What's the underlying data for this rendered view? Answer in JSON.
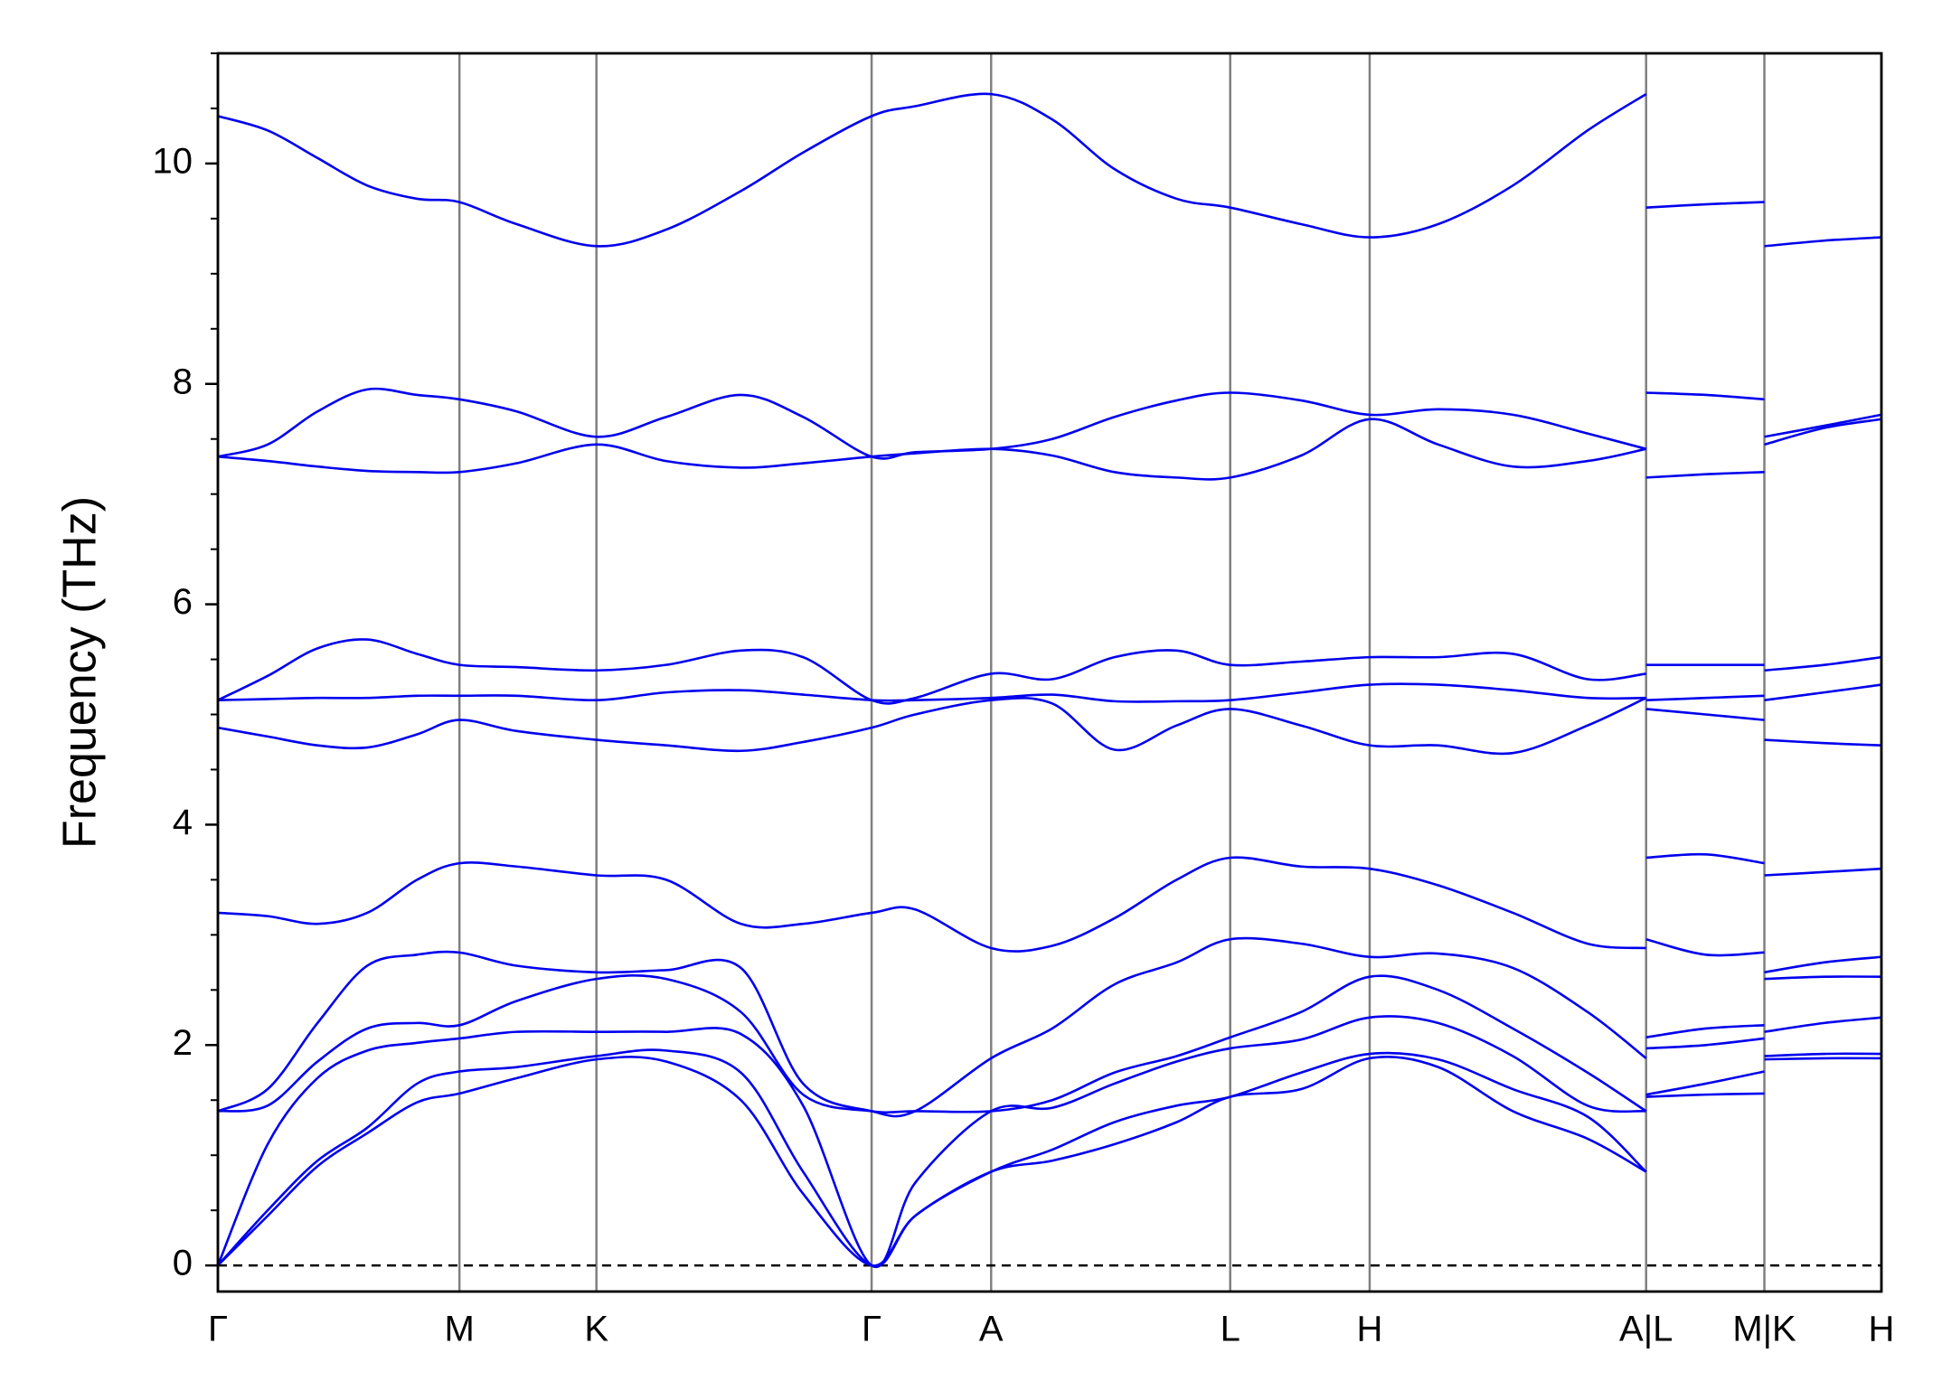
{
  "chart_data": {
    "type": "line",
    "y_label": "Frequency (THz)",
    "color": "#0000ee",
    "xlim": [
      0,
      1.336
    ],
    "ylim": [
      -0.237,
      11.0
    ],
    "yticks": [
      0,
      2,
      4,
      6,
      8,
      10
    ],
    "xticks": [
      {
        "value": 0,
        "label": "Γ"
      },
      {
        "value": 0.194,
        "label": "M"
      },
      {
        "value": 0.304,
        "label": "K"
      },
      {
        "value": 0.525,
        "label": "Γ"
      },
      {
        "value": 0.621,
        "label": "A"
      },
      {
        "value": 0.813,
        "label": "L"
      },
      {
        "value": 0.925,
        "label": "H"
      },
      {
        "value": 1.147,
        "label": "A|L"
      },
      {
        "value": 1.242,
        "label": "M|K"
      },
      {
        "value": 1.336,
        "label": "H"
      }
    ],
    "hlines": [
      0
    ],
    "x": [
      0,
      0.04,
      0.08,
      0.12,
      0.16,
      0.194,
      0.24,
      0.304,
      0.36,
      0.42,
      0.47,
      0.525,
      0.56,
      0.621,
      0.67,
      0.72,
      0.77,
      0.813,
      0.87,
      0.925,
      0.98,
      1.04,
      1.1,
      1.147,
      1.147,
      1.147,
      1.195,
      1.242,
      1.242,
      1.242,
      1.29,
      1.336
    ],
    "series": [
      {
        "values": [
          0,
          0.45,
          0.9,
          1.2,
          1.48,
          1.56,
          1.7,
          1.87,
          1.85,
          1.5,
          0.65,
          0,
          0.45,
          0.85,
          0.95,
          1.1,
          1.3,
          1.53,
          1.6,
          1.88,
          1.8,
          1.4,
          1.15,
          0.85,
          null,
          1.53,
          1.55,
          1.56,
          null,
          1.87,
          1.88,
          1.88
        ]
      },
      {
        "values": [
          0,
          0.5,
          0.95,
          1.25,
          1.65,
          1.76,
          1.8,
          1.9,
          1.95,
          1.75,
          0.85,
          0,
          0.45,
          0.85,
          1.05,
          1.3,
          1.45,
          1.53,
          1.75,
          1.92,
          1.87,
          1.6,
          1.35,
          0.85,
          null,
          1.55,
          1.65,
          1.76,
          null,
          1.9,
          1.92,
          1.92
        ]
      },
      {
        "values": [
          0,
          1.1,
          1.7,
          1.95,
          2.02,
          2.06,
          2.12,
          2.12,
          2.12,
          2.1,
          1.45,
          0,
          0.75,
          1.4,
          1.43,
          1.65,
          1.85,
          1.97,
          2.05,
          2.25,
          2.2,
          1.9,
          1.45,
          1.4,
          null,
          1.97,
          2.0,
          2.06,
          null,
          2.12,
          2.2,
          2.25
        ]
      },
      {
        "values": [
          1.4,
          1.45,
          1.85,
          2.15,
          2.2,
          2.18,
          2.4,
          2.6,
          2.6,
          2.3,
          1.55,
          1.4,
          1.4,
          1.4,
          1.5,
          1.75,
          1.9,
          2.07,
          2.3,
          2.62,
          2.5,
          2.15,
          1.75,
          1.4,
          null,
          2.07,
          2.15,
          2.18,
          null,
          2.6,
          2.62,
          2.62
        ]
      },
      {
        "values": [
          1.4,
          1.6,
          2.2,
          2.72,
          2.82,
          2.84,
          2.72,
          2.66,
          2.68,
          2.7,
          1.65,
          1.4,
          1.4,
          1.88,
          2.15,
          2.55,
          2.75,
          2.96,
          2.92,
          2.8,
          2.83,
          2.7,
          2.3,
          1.88,
          null,
          2.96,
          2.82,
          2.84,
          null,
          2.66,
          2.75,
          2.8
        ]
      },
      {
        "values": [
          3.2,
          3.17,
          3.1,
          3.2,
          3.5,
          3.65,
          3.62,
          3.54,
          3.5,
          3.1,
          3.1,
          3.2,
          3.23,
          2.88,
          2.9,
          3.15,
          3.5,
          3.7,
          3.62,
          3.6,
          3.45,
          3.2,
          2.92,
          2.88,
          null,
          3.7,
          3.73,
          3.65,
          null,
          3.54,
          3.57,
          3.6
        ]
      },
      {
        "values": [
          4.88,
          4.8,
          4.72,
          4.7,
          4.82,
          4.95,
          4.85,
          4.77,
          4.72,
          4.67,
          4.75,
          4.88,
          5.0,
          5.13,
          5.1,
          4.68,
          4.9,
          5.05,
          4.9,
          4.72,
          4.72,
          4.65,
          4.9,
          5.15,
          null,
          5.05,
          5.0,
          4.95,
          null,
          4.77,
          4.74,
          4.72
        ]
      },
      {
        "values": [
          5.13,
          5.14,
          5.15,
          5.15,
          5.17,
          5.17,
          5.17,
          5.13,
          5.2,
          5.22,
          5.18,
          5.13,
          5.13,
          5.15,
          5.18,
          5.12,
          5.12,
          5.13,
          5.2,
          5.27,
          5.27,
          5.22,
          5.15,
          5.15,
          null,
          5.13,
          5.15,
          5.17,
          null,
          5.13,
          5.2,
          5.27
        ]
      },
      {
        "values": [
          5.13,
          5.35,
          5.6,
          5.68,
          5.55,
          5.45,
          5.43,
          5.4,
          5.45,
          5.58,
          5.52,
          5.13,
          5.15,
          5.37,
          5.32,
          5.52,
          5.58,
          5.45,
          5.48,
          5.52,
          5.52,
          5.55,
          5.32,
          5.37,
          null,
          5.45,
          5.45,
          5.45,
          null,
          5.4,
          5.45,
          5.52
        ]
      },
      {
        "values": [
          7.34,
          7.3,
          7.25,
          7.21,
          7.2,
          7.2,
          7.28,
          7.45,
          7.3,
          7.24,
          7.28,
          7.34,
          7.37,
          7.41,
          7.35,
          7.2,
          7.15,
          7.15,
          7.35,
          7.68,
          7.45,
          7.25,
          7.3,
          7.41,
          null,
          7.15,
          7.18,
          7.2,
          null,
          7.45,
          7.6,
          7.68
        ]
      },
      {
        "values": [
          7.34,
          7.45,
          7.75,
          7.95,
          7.9,
          7.86,
          7.75,
          7.52,
          7.7,
          7.9,
          7.7,
          7.34,
          7.38,
          7.41,
          7.5,
          7.7,
          7.85,
          7.92,
          7.85,
          7.72,
          7.77,
          7.72,
          7.55,
          7.41,
          null,
          7.92,
          7.9,
          7.86,
          null,
          7.52,
          7.62,
          7.72
        ]
      },
      {
        "values": [
          10.43,
          10.3,
          10.05,
          9.8,
          9.68,
          9.65,
          9.45,
          9.25,
          9.4,
          9.75,
          10.1,
          10.43,
          10.52,
          10.63,
          10.4,
          9.95,
          9.68,
          9.6,
          9.45,
          9.33,
          9.45,
          9.8,
          10.3,
          10.63,
          null,
          9.6,
          9.63,
          9.65,
          null,
          9.25,
          9.3,
          9.33
        ]
      }
    ]
  }
}
